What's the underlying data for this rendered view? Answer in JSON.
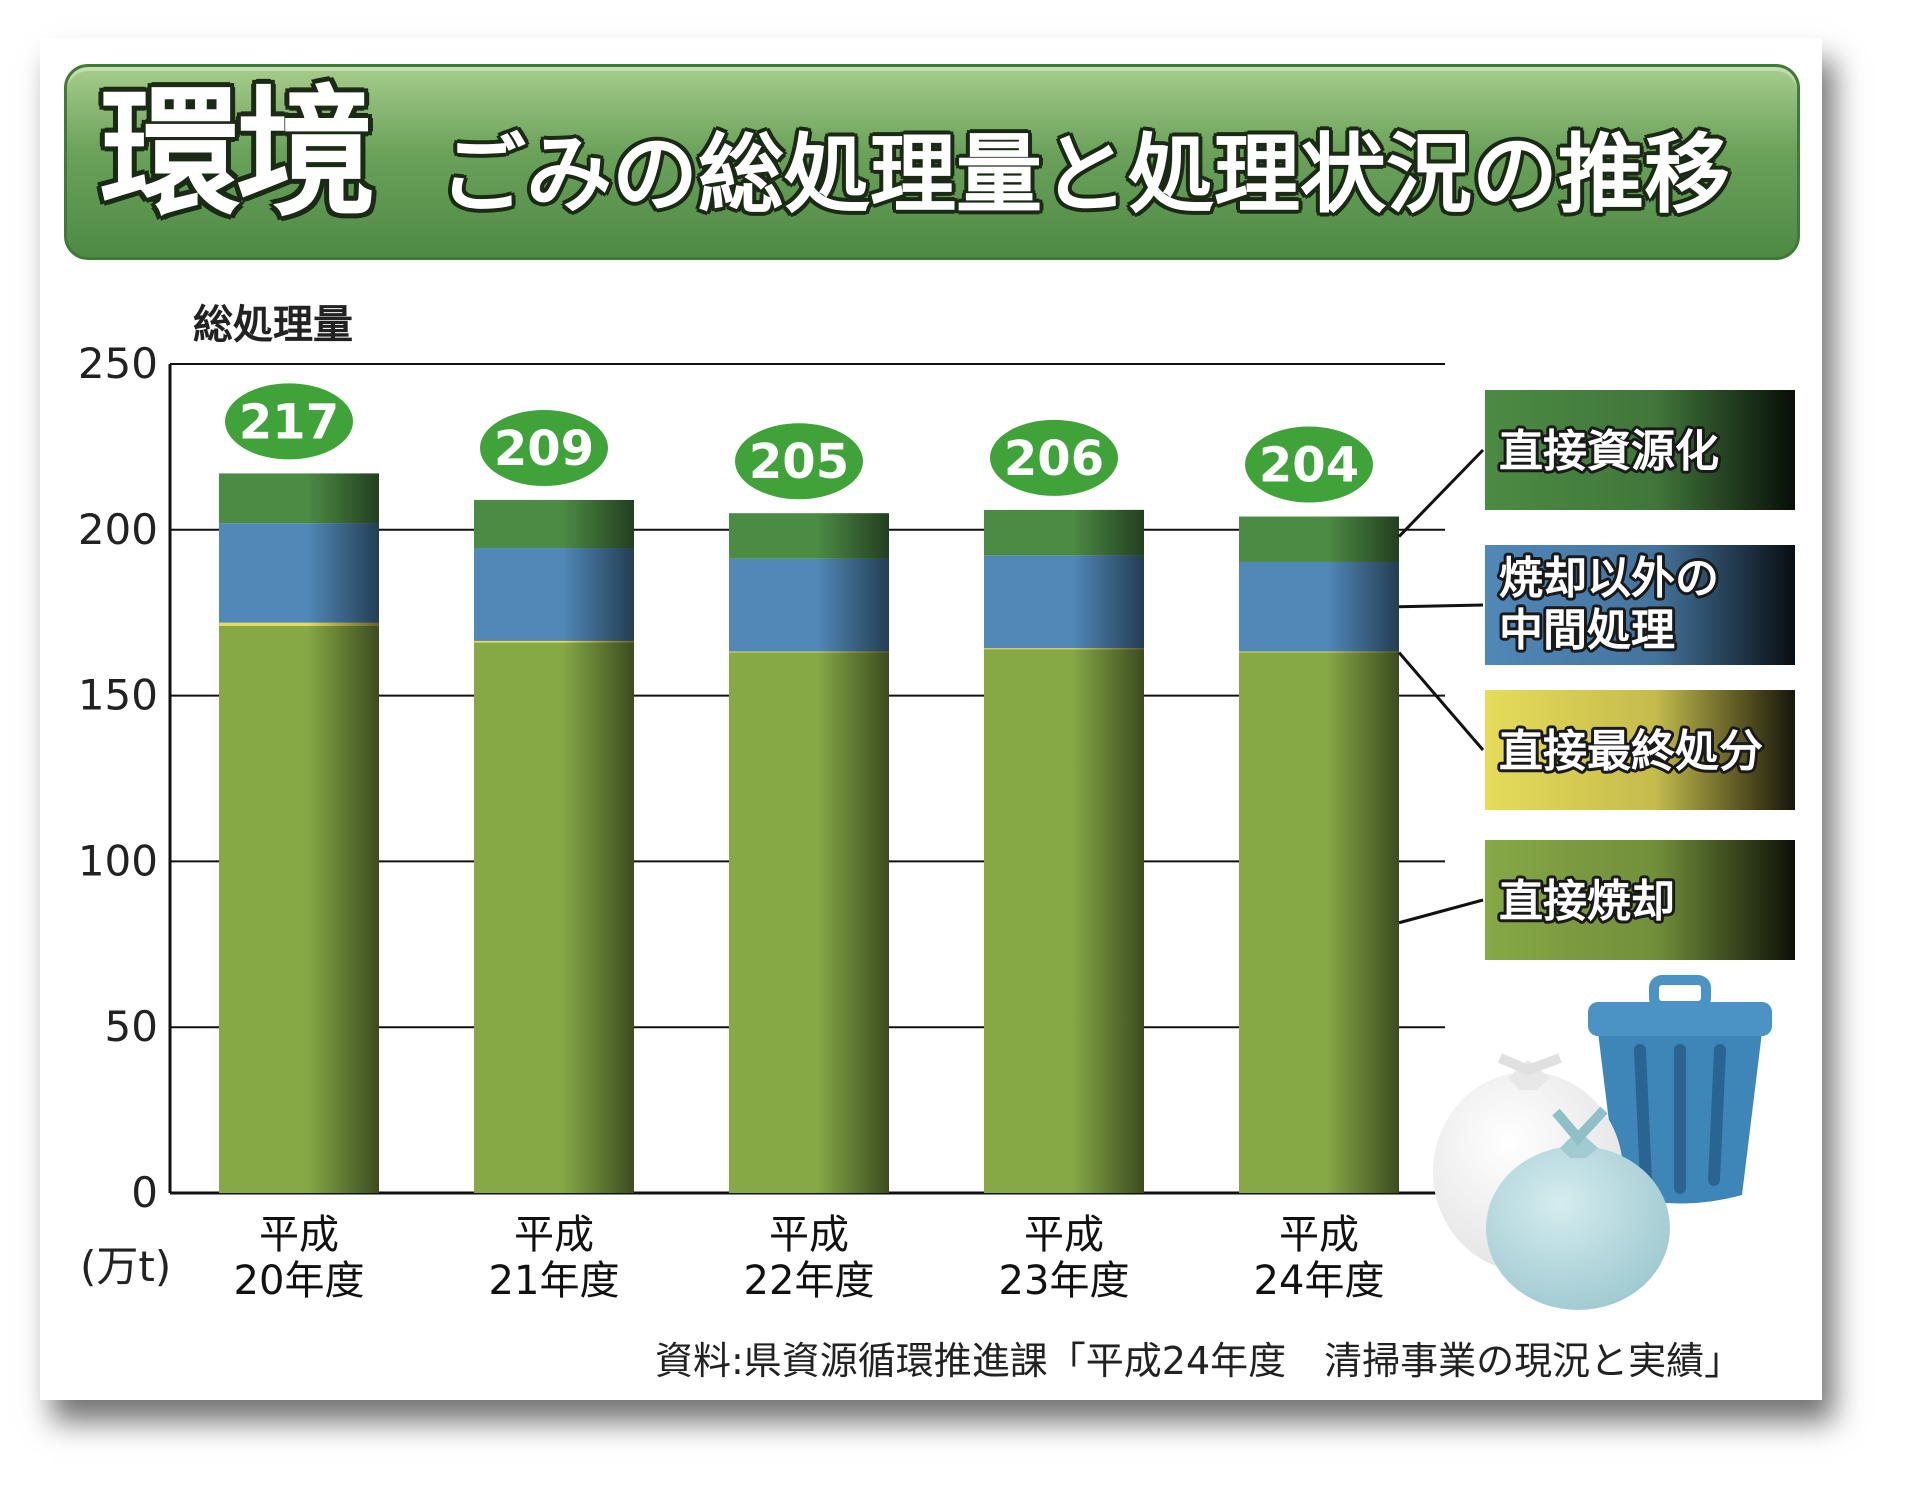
{
  "header": {
    "title_main": "環境",
    "title_sub": "ごみの総処理量と処理状況の推移"
  },
  "source_note": "資料:県資源循環推進課「平成24年度　清掃事業の現況と実績」",
  "colors": {
    "direct_incineration": "#86a845",
    "direct_landfill": "#e6dc5a",
    "intermediate": "#5088b8",
    "direct_recycling": "#4c8b44"
  },
  "chart_data": {
    "type": "bar",
    "stacked": true,
    "y_title": "総処理量",
    "y_unit": "(万t)",
    "ylim": [
      0,
      250
    ],
    "yticks": [
      0,
      50,
      100,
      150,
      200,
      250
    ],
    "grid": true,
    "categories": [
      [
        "平成",
        "20年度"
      ],
      [
        "平成",
        "21年度"
      ],
      [
        "平成",
        "22年度"
      ],
      [
        "平成",
        "23年度"
      ],
      [
        "平成",
        "24年度"
      ]
    ],
    "totals": [
      "217",
      "209",
      "205",
      "206",
      "204"
    ],
    "series": [
      {
        "name": "直接焼却",
        "color": "#86a845",
        "values": [
          171,
          166,
          163,
          164,
          163
        ]
      },
      {
        "name": "直接最終処分",
        "color": "#e6dc5a",
        "values": [
          1,
          0.5,
          0.3,
          0.3,
          0.3
        ]
      },
      {
        "name": "焼却以外の中間処理",
        "color": "#5088b8",
        "values": [
          30,
          28,
          28,
          28,
          27
        ]
      },
      {
        "name": "直接資源化",
        "color": "#4c8b44",
        "values": [
          15,
          14.5,
          13.7,
          13.7,
          13.7
        ]
      }
    ],
    "legend_position": "right",
    "legend": [
      {
        "lines": [
          "直接資源化"
        ],
        "series": 3
      },
      {
        "lines": [
          "焼却以外の",
          "中間処理"
        ],
        "series": 2
      },
      {
        "lines": [
          "直接最終処分"
        ],
        "series": 1
      },
      {
        "lines": [
          "直接焼却"
        ],
        "series": 0
      }
    ]
  }
}
